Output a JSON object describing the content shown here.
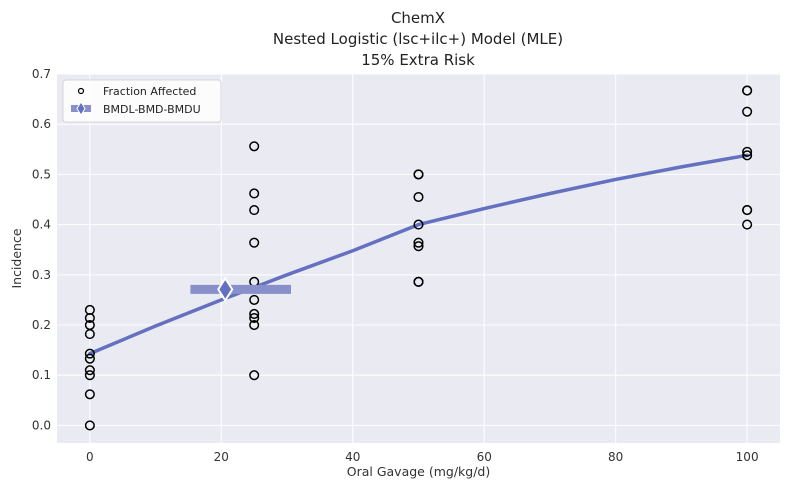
{
  "chart_data": {
    "type": "scatter",
    "title": [
      "ChemX",
      "Nested Logistic (lsc+ilc+) Model (MLE)",
      "15% Extra Risk"
    ],
    "xlabel": "Oral Gavage (mg/kg/d)",
    "ylabel": "Incidence",
    "xlim": [
      -5,
      105
    ],
    "ylim": [
      -0.035,
      0.7
    ],
    "xticks": [
      0,
      20,
      40,
      60,
      80,
      100
    ],
    "yticks": [
      0.0,
      0.1,
      0.2,
      0.3,
      0.4,
      0.5,
      0.6,
      0.7
    ],
    "xtick_labels": [
      "0",
      "20",
      "40",
      "60",
      "80",
      "100"
    ],
    "ytick_labels": [
      "0.0",
      "0.1",
      "0.2",
      "0.3",
      "0.4",
      "0.5",
      "0.6",
      "0.7"
    ],
    "grid": true,
    "legend_position": "top-left",
    "legend": [
      {
        "label": "Fraction Affected",
        "marker": "open-circle"
      },
      {
        "label": "BMDL-BMD-BMDU",
        "marker": "diamond-bar"
      }
    ],
    "series": [
      {
        "name": "Fraction Affected",
        "kind": "scatter",
        "points": [
          [
            0,
            0.0
          ],
          [
            0,
            0.062
          ],
          [
            0,
            0.1
          ],
          [
            0,
            0.11
          ],
          [
            0,
            0.133
          ],
          [
            0,
            0.143
          ],
          [
            0,
            0.182
          ],
          [
            0,
            0.2
          ],
          [
            0,
            0.214
          ],
          [
            0,
            0.23
          ],
          [
            25,
            0.1
          ],
          [
            25,
            0.2
          ],
          [
            25,
            0.214
          ],
          [
            25,
            0.222
          ],
          [
            25,
            0.25
          ],
          [
            25,
            0.286
          ],
          [
            25,
            0.364
          ],
          [
            25,
            0.429
          ],
          [
            25,
            0.462
          ],
          [
            25,
            0.556
          ],
          [
            50,
            0.286
          ],
          [
            50,
            0.286
          ],
          [
            50,
            0.357
          ],
          [
            50,
            0.364
          ],
          [
            50,
            0.4
          ],
          [
            50,
            0.455
          ],
          [
            50,
            0.5
          ],
          [
            50,
            0.5
          ],
          [
            100,
            0.4
          ],
          [
            100,
            0.429
          ],
          [
            100,
            0.429
          ],
          [
            100,
            0.538
          ],
          [
            100,
            0.545
          ],
          [
            100,
            0.625
          ],
          [
            100,
            0.667
          ],
          [
            100,
            0.667
          ]
        ]
      },
      {
        "name": "Model Fit",
        "kind": "line",
        "points": [
          [
            0,
            0.143
          ],
          [
            10,
            0.198
          ],
          [
            20,
            0.25
          ],
          [
            30,
            0.3
          ],
          [
            40,
            0.348
          ],
          [
            50,
            0.4
          ],
          [
            60,
            0.432
          ],
          [
            70,
            0.462
          ],
          [
            80,
            0.49
          ],
          [
            90,
            0.515
          ],
          [
            100,
            0.538
          ]
        ]
      },
      {
        "name": "BMDL-BMD-BMDU",
        "kind": "interval",
        "bmdl": 15.3,
        "bmd": 20.6,
        "bmdu": 30.6,
        "y": 0.271
      }
    ],
    "colors": {
      "plot_background": "#EAEAF2",
      "grid": "#FFFFFF",
      "model_line": "#6470C0",
      "interval_bar": "#8890CC",
      "marker_edge": "#000000"
    }
  }
}
